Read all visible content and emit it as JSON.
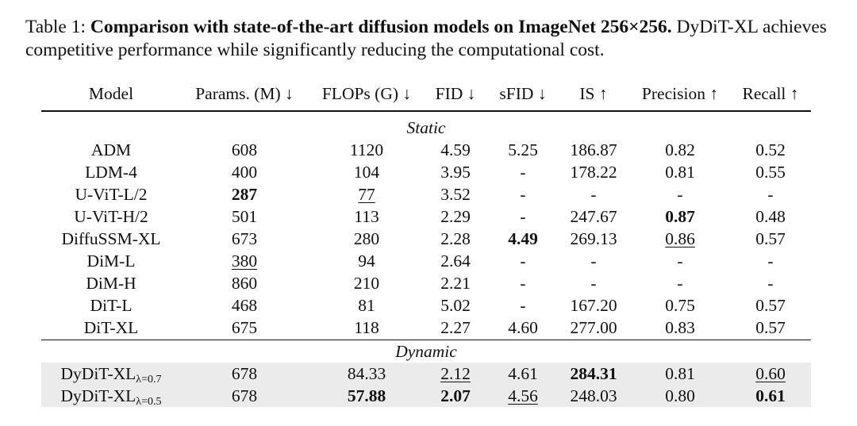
{
  "caption": {
    "label": "Table 1:",
    "title": "Comparison with state-of-the-art diffusion models on ImageNet 256×256.",
    "text": "DyDiT-XL achieves competitive performance while significantly reducing the computational cost."
  },
  "table": {
    "header": [
      "Model",
      "Params. (M) ↓",
      "FLOPs (G) ↓",
      "FID ↓",
      "sFID ↓",
      "IS ↑",
      "Precision ↑",
      "Recall ↑"
    ],
    "sections": [
      {
        "label": "Static",
        "shaded": false,
        "rows": [
          [
            "ADM",
            "608",
            "1120",
            "4.59",
            "5.25",
            "186.87",
            "0.82",
            "0.52"
          ],
          [
            "LDM-4",
            "400",
            "104",
            "3.95",
            "-",
            "178.22",
            "0.81",
            "0.55"
          ],
          [
            "U-ViT-L/2",
            {
              "text": "287",
              "style": "bold"
            },
            {
              "text": "77",
              "style": "underline"
            },
            "3.52",
            "-",
            "-",
            "-",
            "-"
          ],
          [
            "U-ViT-H/2",
            "501",
            "113",
            "2.29",
            "-",
            "247.67",
            {
              "text": "0.87",
              "style": "bold"
            },
            "0.48"
          ],
          [
            "DiffuSSM-XL",
            "673",
            "280",
            "2.28",
            {
              "text": "4.49",
              "style": "bold"
            },
            "269.13",
            {
              "text": "0.86",
              "style": "underline"
            },
            "0.57"
          ],
          [
            "DiM-L",
            {
              "text": "380",
              "style": "underline"
            },
            "94",
            "2.64",
            "-",
            "-",
            "-",
            "-"
          ],
          [
            "DiM-H",
            "860",
            "210",
            "2.21",
            "-",
            "-",
            "-",
            "-"
          ],
          [
            "DiT-L",
            "468",
            "81",
            "5.02",
            "-",
            "167.20",
            "0.75",
            "0.57"
          ],
          [
            "DiT-XL",
            "675",
            "118",
            "2.27",
            "4.60",
            "277.00",
            "0.83",
            "0.57"
          ]
        ]
      },
      {
        "label": "Dynamic",
        "shaded": true,
        "rows": [
          [
            {
              "text": "DyDiT-XL",
              "sub": "λ=0.7"
            },
            "678",
            "84.33",
            {
              "text": "2.12",
              "style": "underline"
            },
            "4.61",
            {
              "text": "284.31",
              "style": "bold"
            },
            "0.81",
            {
              "text": "0.60",
              "style": "underline"
            }
          ],
          [
            {
              "text": "DyDiT-XL",
              "sub": "λ=0.5"
            },
            "678",
            {
              "text": "57.88",
              "style": "bold"
            },
            {
              "text": "2.07",
              "style": "bold"
            },
            {
              "text": "4.56",
              "style": "underline"
            },
            "248.03",
            "0.80",
            {
              "text": "0.61",
              "style": "bold"
            }
          ]
        ]
      }
    ]
  }
}
